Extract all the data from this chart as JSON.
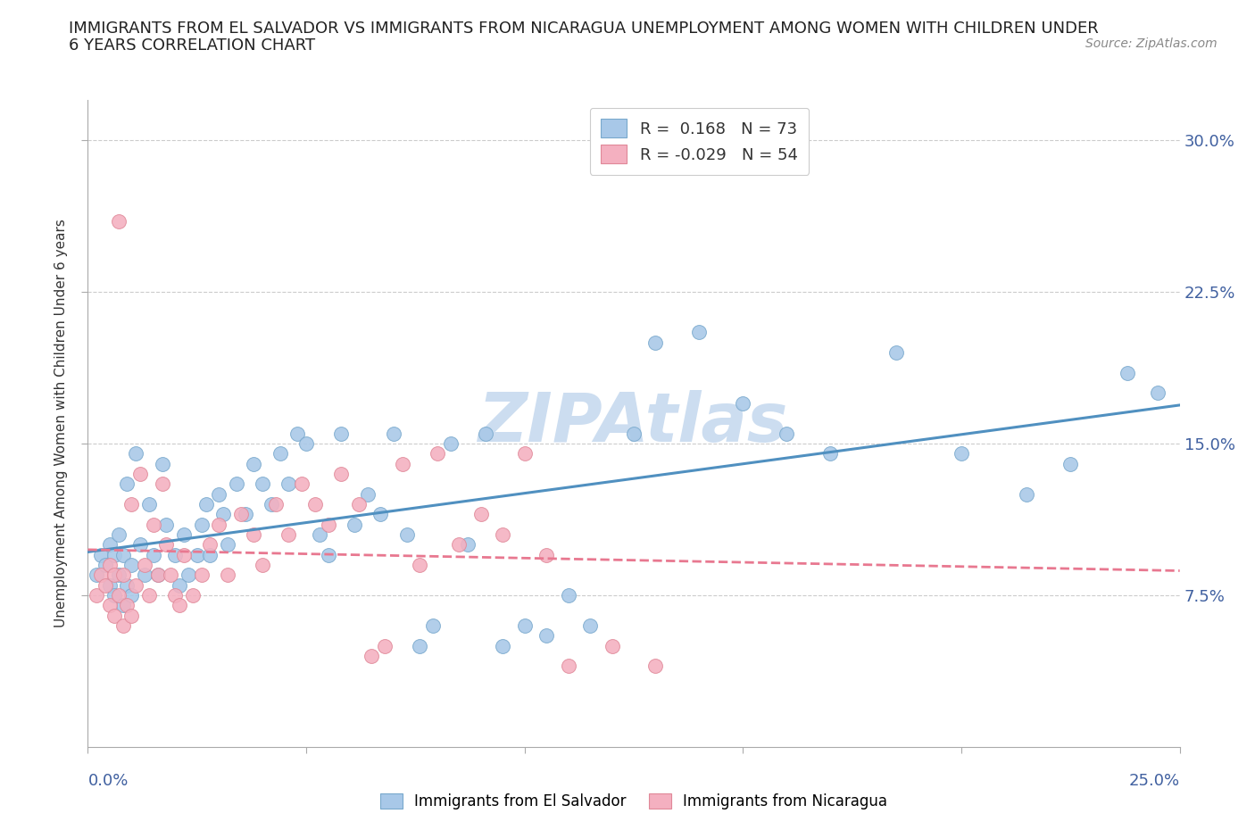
{
  "title_line1": "IMMIGRANTS FROM EL SALVADOR VS IMMIGRANTS FROM NICARAGUA UNEMPLOYMENT AMONG WOMEN WITH CHILDREN UNDER",
  "title_line2": "6 YEARS CORRELATION CHART",
  "source": "Source: ZipAtlas.com",
  "ylabel": "Unemployment Among Women with Children Under 6 years",
  "color_salvador": "#a8c8e8",
  "color_nicaragua": "#f4b0c0",
  "color_edge_salvador": "#78a8cc",
  "color_edge_nicaragua": "#e08898",
  "color_line_salvador": "#5090c0",
  "color_line_nicaragua": "#e87890",
  "watermark_color": "#ccddf0",
  "xlim": [
    0.0,
    0.25
  ],
  "ylim": [
    0.0,
    0.32
  ],
  "yticks": [
    0.075,
    0.15,
    0.225,
    0.3
  ],
  "ytick_labels": [
    "7.5%",
    "15.0%",
    "22.5%",
    "30.0%"
  ],
  "legend_upper_entries": [
    {
      "label": "R =  0.168   N = 73",
      "color": "#a8c8e8",
      "edge": "#78a8cc"
    },
    {
      "label": "R = -0.029   N = 54",
      "color": "#f4b0c0",
      "edge": "#e08898"
    }
  ],
  "legend_bottom_entries": [
    {
      "label": "Immigrants from El Salvador",
      "color": "#a8c8e8",
      "edge": "#78a8cc"
    },
    {
      "label": "Immigrants from Nicaragua",
      "color": "#f4b0c0",
      "edge": "#e08898"
    }
  ],
  "N_salvador": 73,
  "N_nicaragua": 54,
  "salvador_x": [
    0.002,
    0.003,
    0.004,
    0.005,
    0.005,
    0.006,
    0.006,
    0.007,
    0.007,
    0.008,
    0.008,
    0.009,
    0.009,
    0.01,
    0.01,
    0.011,
    0.012,
    0.013,
    0.014,
    0.015,
    0.016,
    0.017,
    0.018,
    0.02,
    0.021,
    0.022,
    0.023,
    0.025,
    0.026,
    0.027,
    0.028,
    0.03,
    0.031,
    0.032,
    0.034,
    0.036,
    0.038,
    0.04,
    0.042,
    0.044,
    0.046,
    0.048,
    0.05,
    0.053,
    0.055,
    0.058,
    0.061,
    0.064,
    0.067,
    0.07,
    0.073,
    0.076,
    0.079,
    0.083,
    0.087,
    0.091,
    0.095,
    0.1,
    0.105,
    0.11,
    0.115,
    0.125,
    0.13,
    0.14,
    0.15,
    0.16,
    0.17,
    0.185,
    0.2,
    0.215,
    0.225,
    0.238,
    0.245
  ],
  "salvador_y": [
    0.085,
    0.095,
    0.09,
    0.08,
    0.1,
    0.075,
    0.095,
    0.085,
    0.105,
    0.07,
    0.095,
    0.08,
    0.13,
    0.075,
    0.09,
    0.145,
    0.1,
    0.085,
    0.12,
    0.095,
    0.085,
    0.14,
    0.11,
    0.095,
    0.08,
    0.105,
    0.085,
    0.095,
    0.11,
    0.12,
    0.095,
    0.125,
    0.115,
    0.1,
    0.13,
    0.115,
    0.14,
    0.13,
    0.12,
    0.145,
    0.13,
    0.155,
    0.15,
    0.105,
    0.095,
    0.155,
    0.11,
    0.125,
    0.115,
    0.155,
    0.105,
    0.05,
    0.06,
    0.15,
    0.1,
    0.155,
    0.05,
    0.06,
    0.055,
    0.075,
    0.06,
    0.155,
    0.2,
    0.205,
    0.17,
    0.155,
    0.145,
    0.195,
    0.145,
    0.125,
    0.14,
    0.185,
    0.175
  ],
  "nicaragua_x": [
    0.002,
    0.003,
    0.004,
    0.005,
    0.005,
    0.006,
    0.006,
    0.007,
    0.007,
    0.008,
    0.008,
    0.009,
    0.01,
    0.01,
    0.011,
    0.012,
    0.013,
    0.014,
    0.015,
    0.016,
    0.017,
    0.018,
    0.019,
    0.02,
    0.021,
    0.022,
    0.024,
    0.026,
    0.028,
    0.03,
    0.032,
    0.035,
    0.038,
    0.04,
    0.043,
    0.046,
    0.049,
    0.052,
    0.055,
    0.058,
    0.062,
    0.065,
    0.068,
    0.072,
    0.076,
    0.08,
    0.085,
    0.09,
    0.095,
    0.1,
    0.105,
    0.11,
    0.12,
    0.13
  ],
  "nicaragua_y": [
    0.075,
    0.085,
    0.08,
    0.07,
    0.09,
    0.065,
    0.085,
    0.26,
    0.075,
    0.06,
    0.085,
    0.07,
    0.12,
    0.065,
    0.08,
    0.135,
    0.09,
    0.075,
    0.11,
    0.085,
    0.13,
    0.1,
    0.085,
    0.075,
    0.07,
    0.095,
    0.075,
    0.085,
    0.1,
    0.11,
    0.085,
    0.115,
    0.105,
    0.09,
    0.12,
    0.105,
    0.13,
    0.12,
    0.11,
    0.135,
    0.12,
    0.045,
    0.05,
    0.14,
    0.09,
    0.145,
    0.1,
    0.115,
    0.105,
    0.145,
    0.095,
    0.04,
    0.05,
    0.04
  ]
}
